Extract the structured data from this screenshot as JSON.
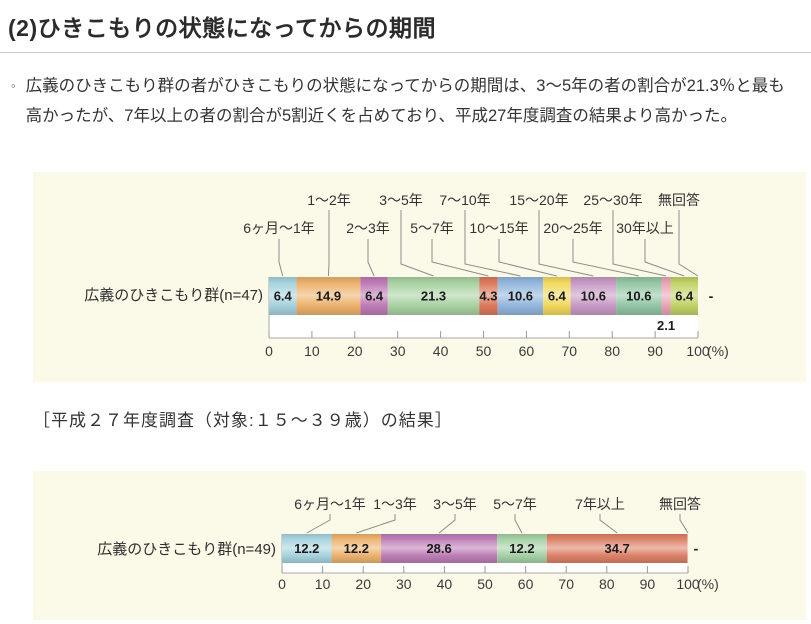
{
  "page": {
    "heading": "(2)ひきこもりの状態になってからの期間",
    "bullet_marker": "◦",
    "paragraph": "広義のひきこもり群の者がひきこもりの状態になってからの期間は、3～5年の者の割合が21.3％と最も高かったが、7年以上の者の割合が5割近くを占めており、平成27年度調査の結果より高かった。",
    "section_label": "［平成２７年度調査（対象:１５～３９歳）の結果］"
  },
  "chart_data": [
    {
      "type": "bar",
      "stacked": true,
      "orientation": "horizontal",
      "row_label": "広義のひきこもり群(n=47)",
      "categories": [
        "6ヶ月～1年",
        "1～2年",
        "2～3年",
        "3～5年",
        "5～7年",
        "7～10年",
        "10～15年",
        "15～20年",
        "20～25年",
        "25～30年",
        "30年以上",
        "無回答"
      ],
      "values": [
        6.4,
        14.9,
        6.4,
        21.3,
        4.3,
        10.6,
        6.4,
        10.6,
        10.6,
        2.1,
        6.4,
        null
      ],
      "display_values": [
        "6.4",
        "14.9",
        "6.4",
        "21.3",
        "4.3",
        "10.6",
        "6.4",
        "10.6",
        "10.6",
        "2.1",
        "6.4",
        "-"
      ],
      "colors": [
        "#a7d3de",
        "#edb26e",
        "#bf7cb7",
        "#a9d2a3",
        "#dd7a5d",
        "#94b7dd",
        "#f2d95e",
        "#c89bc5",
        "#94c6a5",
        "#eba4ba",
        "#c2d368"
      ],
      "axis": {
        "min": 0,
        "max": 100,
        "step": 10,
        "unit": "(%)"
      }
    },
    {
      "type": "bar",
      "stacked": true,
      "orientation": "horizontal",
      "row_label": "広義のひきこもり群(n=49)",
      "categories": [
        "6ヶ月～1年",
        "1～3年",
        "3～5年",
        "5～7年",
        "7年以上",
        "無回答"
      ],
      "values": [
        12.2,
        12.2,
        28.6,
        12.2,
        34.7,
        null
      ],
      "display_values": [
        "12.2",
        "12.2",
        "28.6",
        "12.2",
        "34.7",
        "-"
      ],
      "colors": [
        "#a7d3de",
        "#edb26e",
        "#bd7eb6",
        "#a5d0a5",
        "#dc8167"
      ],
      "axis": {
        "min": 0,
        "max": 100,
        "step": 10,
        "unit": "(%)"
      }
    }
  ]
}
